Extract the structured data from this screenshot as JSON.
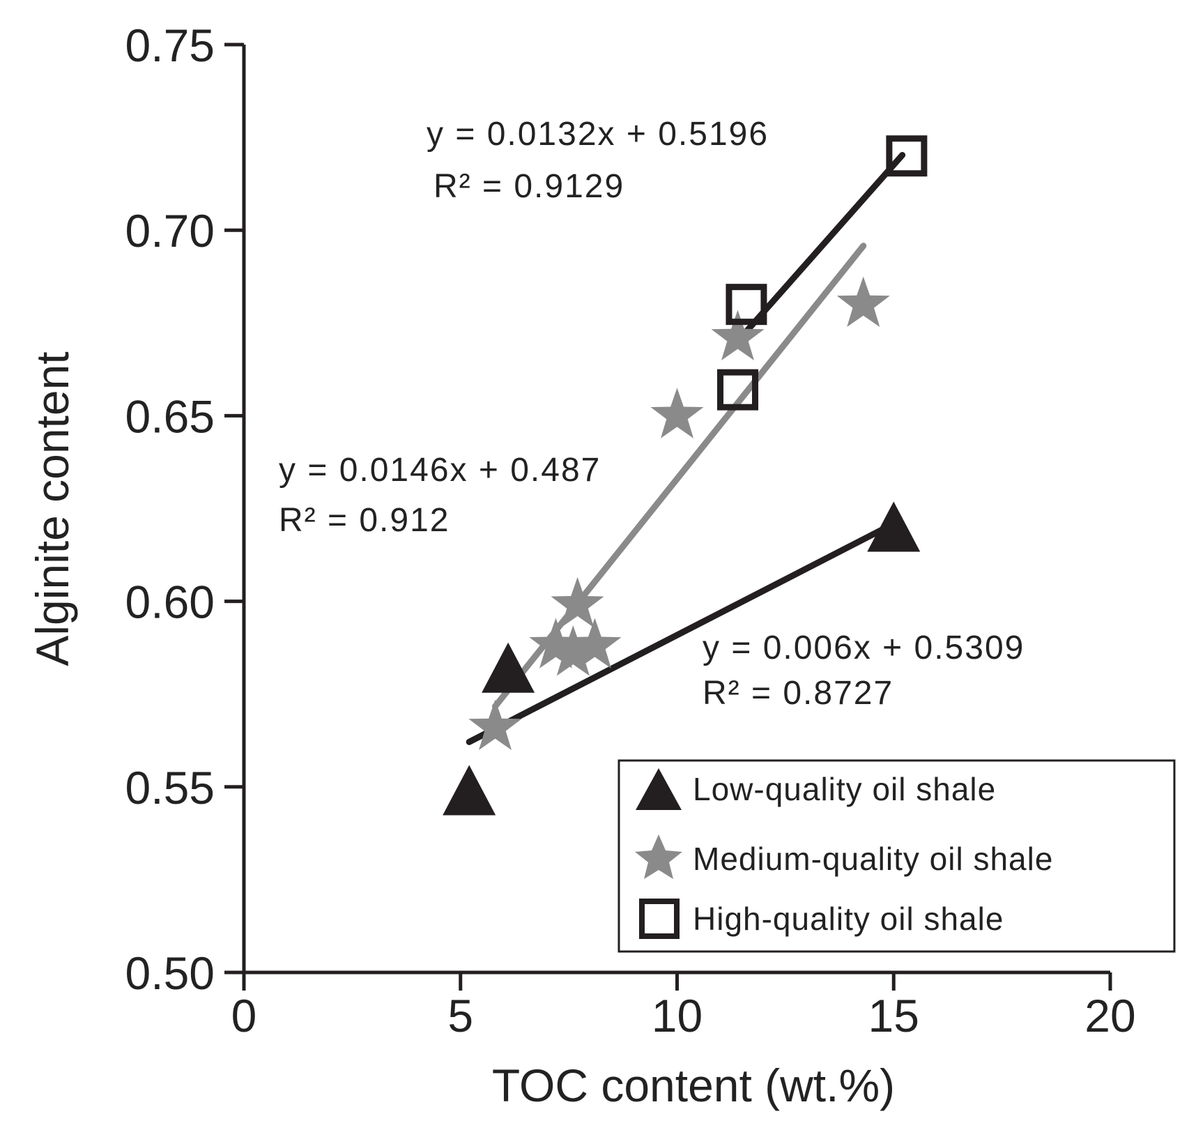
{
  "chart_data": {
    "type": "scatter",
    "xlabel": "TOC content (wt.%)",
    "ylabel": "Alginite content",
    "xlim": [
      0,
      20
    ],
    "ylim": [
      0.5,
      0.75
    ],
    "x_ticks": [
      "0",
      "5",
      "10",
      "15",
      "20"
    ],
    "x_tick_values": [
      0,
      5,
      10,
      15,
      20
    ],
    "y_ticks": [
      "0.50",
      "0.55",
      "0.60",
      "0.65",
      "0.70",
      "0.75"
    ],
    "y_tick_values": [
      0.5,
      0.55,
      0.6,
      0.65,
      0.7,
      0.75
    ],
    "legend_position": "bottom-right",
    "series": [
      {
        "name": "Low-quality oil shale",
        "marker": "triangle",
        "color": "#231f20",
        "points": [
          [
            5.2,
            0.548
          ],
          [
            6.1,
            0.581
          ],
          [
            15.0,
            0.619
          ]
        ],
        "fit": {
          "x": [
            5.2,
            15.0
          ],
          "slope": 0.006,
          "intercept": 0.5309
        },
        "equation": "y = 0.006x + 0.5309",
        "r2": "R² = 0.8727"
      },
      {
        "name": "Medium-quality oil shale",
        "marker": "star",
        "color": "#8a8a8a",
        "points": [
          [
            5.8,
            0.566
          ],
          [
            7.2,
            0.588
          ],
          [
            7.6,
            0.586
          ],
          [
            7.7,
            0.599
          ],
          [
            8.1,
            0.588
          ],
          [
            10.0,
            0.65
          ],
          [
            11.4,
            0.671
          ],
          [
            14.3,
            0.68
          ]
        ],
        "fit": {
          "x": [
            5.8,
            14.3
          ],
          "slope": 0.0146,
          "intercept": 0.487
        },
        "equation": "y = 0.0146x + 0.487",
        "r2": "R² = 0.912"
      },
      {
        "name": "High-quality oil shale",
        "marker": "square",
        "color": "#231f20",
        "points": [
          [
            11.4,
            0.657
          ],
          [
            11.6,
            0.68
          ],
          [
            15.3,
            0.72
          ]
        ],
        "fit": {
          "x": [
            11.6,
            15.2
          ],
          "slope": 0.0132,
          "intercept": 0.5196
        },
        "equation": "y = 0.0132x + 0.5196",
        "r2": "R² = 0.9129"
      }
    ]
  }
}
